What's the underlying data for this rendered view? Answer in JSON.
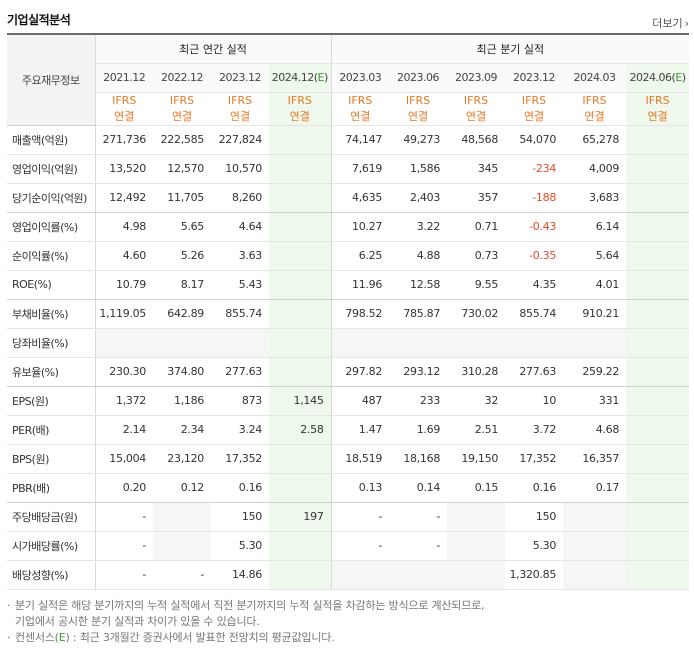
{
  "header": {
    "title": "기업실적분석",
    "more_label": "더보기",
    "more_icon": "chevron-right-icon"
  },
  "table": {
    "corner_label": "주요재무정보",
    "group_annual": "최근 연간 실적",
    "group_quarter": "최근 분기 실적",
    "periods": [
      "2021.12",
      "2022.12",
      "2023.12",
      "2024.12(E)",
      "2023.03",
      "2023.06",
      "2023.09",
      "2023.12",
      "2024.03",
      "2024.06(E)"
    ],
    "ifrs_top": "IFRS",
    "ifrs_bottom": "연결",
    "rows": [
      {
        "label": "매출액(억원)",
        "cells": [
          "271,736",
          "222,585",
          "227,824",
          "",
          "74,147",
          "49,273",
          "48,568",
          "54,070",
          "65,278",
          ""
        ]
      },
      {
        "label": "영업이익(억원)",
        "cells": [
          "13,520",
          "12,570",
          "10,570",
          "",
          "7,619",
          "1,586",
          "345",
          "-234",
          "4,009",
          ""
        ]
      },
      {
        "label": "당기순이익(억원)",
        "cells": [
          "12,492",
          "11,705",
          "8,260",
          "",
          "4,635",
          "2,403",
          "357",
          "-188",
          "3,683",
          ""
        ]
      },
      {
        "label": "영업이익률(%)",
        "cells": [
          "4.98",
          "5.65",
          "4.64",
          "",
          "10.27",
          "3.22",
          "0.71",
          "-0.43",
          "6.14",
          ""
        ]
      },
      {
        "label": "순이익률(%)",
        "cells": [
          "4.60",
          "5.26",
          "3.63",
          "",
          "6.25",
          "4.88",
          "0.73",
          "-0.35",
          "5.64",
          ""
        ]
      },
      {
        "label": "ROE(%)",
        "cells": [
          "10.79",
          "8.17",
          "5.43",
          "",
          "11.96",
          "12.58",
          "9.55",
          "4.35",
          "4.01",
          ""
        ]
      },
      {
        "label": "부채비율(%)",
        "cells": [
          "1,119.05",
          "642.89",
          "855.74",
          "",
          "798.52",
          "785.87",
          "730.02",
          "855.74",
          "910.21",
          ""
        ]
      },
      {
        "label": "당좌비율(%)",
        "cells": [
          "",
          "",
          "",
          "",
          "",
          "",
          "",
          "",
          "",
          ""
        ]
      },
      {
        "label": "유보율(%)",
        "cells": [
          "230.30",
          "374.80",
          "277.63",
          "",
          "297.82",
          "293.12",
          "310.28",
          "277.63",
          "259.22",
          ""
        ]
      },
      {
        "label": "EPS(원)",
        "cells": [
          "1,372",
          "1,186",
          "873",
          "1,145",
          "487",
          "233",
          "32",
          "10",
          "331",
          ""
        ]
      },
      {
        "label": "PER(배)",
        "cells": [
          "2.14",
          "2.34",
          "3.24",
          "2.58",
          "1.47",
          "1.69",
          "2.51",
          "3.72",
          "4.68",
          ""
        ]
      },
      {
        "label": "BPS(원)",
        "cells": [
          "15,004",
          "23,120",
          "17,352",
          "",
          "18,519",
          "18,168",
          "19,150",
          "17,352",
          "16,357",
          ""
        ]
      },
      {
        "label": "PBR(배)",
        "cells": [
          "0.20",
          "0.12",
          "0.16",
          "",
          "0.13",
          "0.14",
          "0.15",
          "0.16",
          "0.17",
          ""
        ]
      },
      {
        "label": "주당배당금(원)",
        "cells": [
          "-",
          "",
          "150",
          "197",
          "-",
          "-",
          "",
          "150",
          "",
          ""
        ]
      },
      {
        "label": "시가배당률(%)",
        "cells": [
          "-",
          "",
          "5.30",
          "",
          "-",
          "-",
          "",
          "5.30",
          "",
          ""
        ]
      },
      {
        "label": "배당성향(%)",
        "cells": [
          "-",
          "-",
          "14.86",
          "",
          "",
          "",
          "",
          "1,320.85",
          "",
          ""
        ]
      }
    ]
  },
  "notes": {
    "line1": "분기 실적은 해당 분기까지의 누적 실적에서 직전 분기까지의 누적 실적을 차감하는 방식으로 계산되므로,",
    "line2": "기업에서 공시한 분기 실적과 차이가 있을 수 있습니다.",
    "line3_prefix": "컨센서스(",
    "line3_e": "E",
    "line3_suffix": ") : 최근 3개월간 증권사에서 발표한 전망치의 평균값입니다."
  },
  "colors": {
    "negative": "#e14a2b",
    "ifrs": "#e87a24",
    "estimate_bg": "#eef8ec",
    "estimate_mark": "#3b9a2c"
  }
}
